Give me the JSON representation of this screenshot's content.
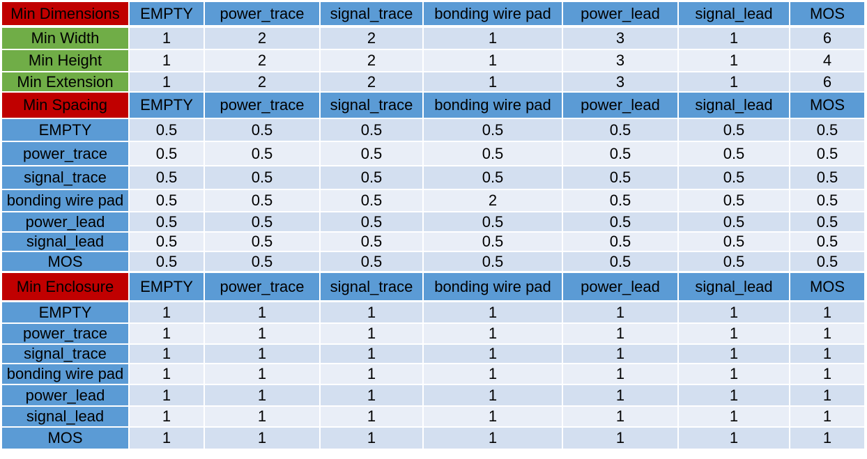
{
  "columns": [
    "EMPTY",
    "power_trace",
    "signal_trace",
    "bonding wire pad",
    "power_lead",
    "signal_lead",
    "MOS"
  ],
  "sections": [
    {
      "title": "Min Dimensions",
      "title_color": "#c00000",
      "rows": [
        {
          "label": "Min Width",
          "label_color": "#70ad47",
          "values": [
            "1",
            "2",
            "2",
            "1",
            "3",
            "1",
            "6"
          ]
        },
        {
          "label": "Min Height",
          "label_color": "#70ad47",
          "values": [
            "1",
            "2",
            "2",
            "1",
            "3",
            "1",
            "4"
          ]
        },
        {
          "label": "Min Extension",
          "label_color": "#70ad47",
          "values": [
            "1",
            "2",
            "2",
            "1",
            "3",
            "1",
            "6"
          ]
        }
      ]
    },
    {
      "title": "Min Spacing",
      "title_color": "#c00000",
      "rows": [
        {
          "label": "EMPTY",
          "label_color": "#5b9bd5",
          "values": [
            "0.5",
            "0.5",
            "0.5",
            "0.5",
            "0.5",
            "0.5",
            "0.5"
          ]
        },
        {
          "label": "power_trace",
          "label_color": "#5b9bd5",
          "values": [
            "0.5",
            "0.5",
            "0.5",
            "0.5",
            "0.5",
            "0.5",
            "0.5"
          ]
        },
        {
          "label": "signal_trace",
          "label_color": "#5b9bd5",
          "values": [
            "0.5",
            "0.5",
            "0.5",
            "0.5",
            "0.5",
            "0.5",
            "0.5"
          ]
        },
        {
          "label": "bonding wire pad",
          "label_color": "#5b9bd5",
          "values": [
            "0.5",
            "0.5",
            "0.5",
            "2",
            "0.5",
            "0.5",
            "0.5"
          ]
        },
        {
          "label": "power_lead",
          "label_color": "#5b9bd5",
          "values": [
            "0.5",
            "0.5",
            "0.5",
            "0.5",
            "0.5",
            "0.5",
            "0.5"
          ]
        },
        {
          "label": "signal_lead",
          "label_color": "#5b9bd5",
          "values": [
            "0.5",
            "0.5",
            "0.5",
            "0.5",
            "0.5",
            "0.5",
            "0.5"
          ]
        },
        {
          "label": "MOS",
          "label_color": "#5b9bd5",
          "values": [
            "0.5",
            "0.5",
            "0.5",
            "0.5",
            "0.5",
            "0.5",
            "0.5"
          ]
        }
      ]
    },
    {
      "title": "Min Enclosure",
      "title_color": "#c00000",
      "rows": [
        {
          "label": "EMPTY",
          "label_color": "#5b9bd5",
          "values": [
            "1",
            "1",
            "1",
            "1",
            "1",
            "1",
            "1"
          ]
        },
        {
          "label": "power_trace",
          "label_color": "#5b9bd5",
          "values": [
            "1",
            "1",
            "1",
            "1",
            "1",
            "1",
            "1"
          ]
        },
        {
          "label": "signal_trace",
          "label_color": "#5b9bd5",
          "values": [
            "1",
            "1",
            "1",
            "1",
            "1",
            "1",
            "1"
          ]
        },
        {
          "label": "bonding wire pad",
          "label_color": "#5b9bd5",
          "values": [
            "1",
            "1",
            "1",
            "1",
            "1",
            "1",
            "1"
          ]
        },
        {
          "label": "power_lead",
          "label_color": "#5b9bd5",
          "values": [
            "1",
            "1",
            "1",
            "1",
            "1",
            "1",
            "1"
          ]
        },
        {
          "label": "signal_lead",
          "label_color": "#5b9bd5",
          "values": [
            "1",
            "1",
            "1",
            "1",
            "1",
            "1",
            "1"
          ]
        },
        {
          "label": "MOS",
          "label_color": "#5b9bd5",
          "values": [
            "1",
            "1",
            "1",
            "1",
            "1",
            "1",
            "1"
          ]
        }
      ]
    }
  ]
}
